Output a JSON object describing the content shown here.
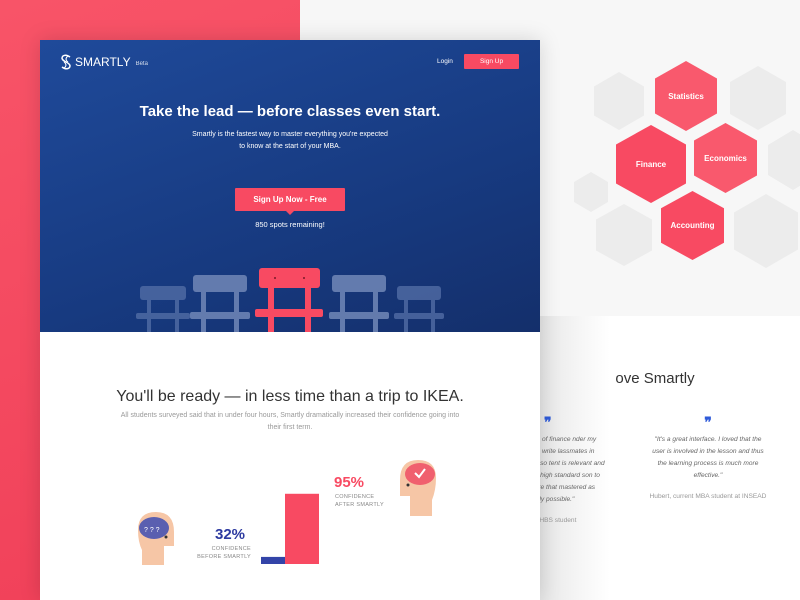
{
  "colors": {
    "accent": "#f84a62",
    "hero_blue": "#1f4a9a",
    "before_blue": "#3344a8",
    "quote_blue": "#2f5bd9"
  },
  "nav": {
    "logo": "SMARTLY",
    "beta": "Beta",
    "login": "Login",
    "signup": "Sign Up"
  },
  "hero": {
    "title": "Take the lead — before classes even start.",
    "subtitle": "Smartly is the fastest way to master everything you're expected to know at the start of your MBA.",
    "cta": "Sign Up Now - Free",
    "spots": "850 spots remaining!"
  },
  "stats": {
    "title": "You'll be ready — in less time than a trip to IKEA.",
    "subtitle": "All students surveyed said that in under four hours, Smartly dramatically increased their confidence going into their first term.",
    "before": {
      "value": "32%",
      "label1": "CONFIDENCE",
      "label2": "BEFORE SMARTLY",
      "percent": 32
    },
    "after": {
      "value": "95%",
      "label1": "CONFIDENCE",
      "label2": "AFTER SMARTLY",
      "percent": 95
    }
  },
  "topics": [
    "Statistics",
    "Finance",
    "Economics",
    "Accounting"
  ],
  "testimonials": {
    "title": "ove Smartly",
    "items": [
      {
        "text": "years of finance nder my belt, I write lassmates in mind so tent is relevant and set a high standard son to ensure that mastered as quickly possible.\"",
        "who": "rrent HBS student"
      },
      {
        "text": "\"It's a great interface. I loved that the user is involved in the lesson and thus the learning process is much more effective.\"",
        "who": "Hubert, current MBA student at INSEAD"
      }
    ]
  }
}
